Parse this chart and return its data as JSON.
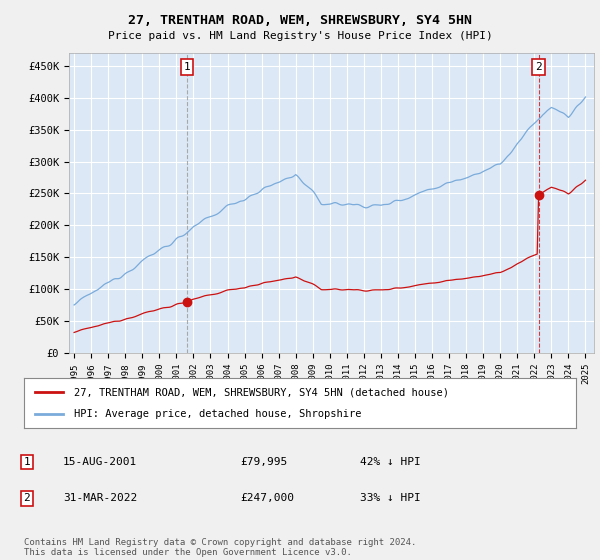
{
  "title": "27, TRENTHAM ROAD, WEM, SHREWSBURY, SY4 5HN",
  "subtitle": "Price paid vs. HM Land Registry's House Price Index (HPI)",
  "ylabel_ticks": [
    "£0",
    "£50K",
    "£100K",
    "£150K",
    "£200K",
    "£250K",
    "£300K",
    "£350K",
    "£400K",
    "£450K"
  ],
  "ylim": [
    0,
    470000
  ],
  "xlim_start": 1994.7,
  "xlim_end": 2025.5,
  "sale1_x": 2001.617,
  "sale1_y": 79995,
  "sale2_x": 2022.247,
  "sale2_y": 247000,
  "sale1_label": "1",
  "sale2_label": "2",
  "sale1_date": "15-AUG-2001",
  "sale1_price": "£79,995",
  "sale1_hpi": "42% ↓ HPI",
  "sale2_date": "31-MAR-2022",
  "sale2_price": "£247,000",
  "sale2_hpi": "33% ↓ HPI",
  "legend_line1": "27, TRENTHAM ROAD, WEM, SHREWSBURY, SY4 5HN (detached house)",
  "legend_line2": "HPI: Average price, detached house, Shropshire",
  "footer": "Contains HM Land Registry data © Crown copyright and database right 2024.\nThis data is licensed under the Open Government Licence v3.0.",
  "hpi_color": "#7aabdb",
  "sold_color": "#cc1111",
  "bg_color": "#dce8f5",
  "grid_color": "#ffffff",
  "annotation_box_color": "#cc1111",
  "sale1_vline_color": "#999999",
  "sale2_vline_color": "#cc1111"
}
